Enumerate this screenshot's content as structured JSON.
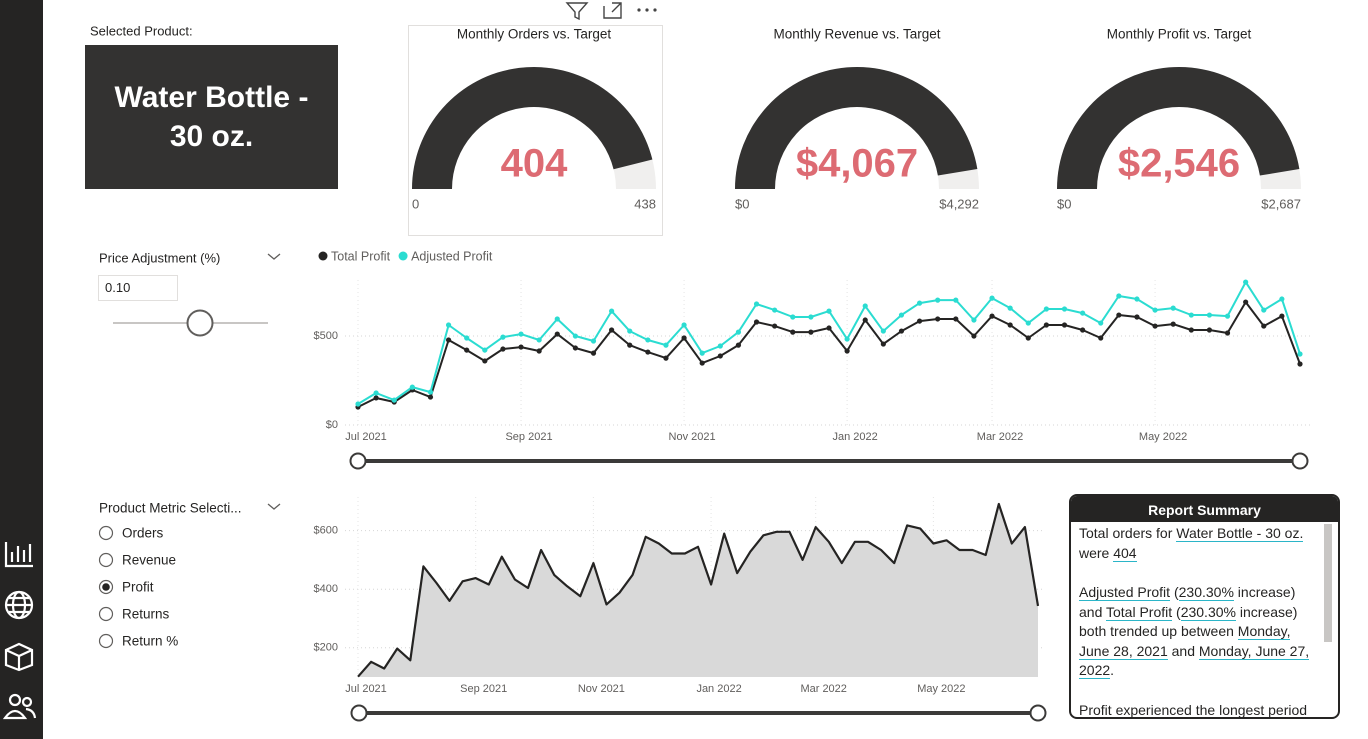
{
  "product_card": {
    "label": "Selected Product:",
    "value": "Water Bottle - 30 oz."
  },
  "gauges": [
    {
      "title": "Monthly Orders vs. Target",
      "value": 404,
      "min": 0,
      "max": 438
    },
    {
      "title": "Monthly Revenue vs. Target",
      "value": 4067,
      "value_label": "$4,067",
      "min": 0,
      "min_label": "$0",
      "max": 4292,
      "max_label": "$4,292"
    },
    {
      "title": "Monthly Profit vs. Target",
      "value": 2546,
      "value_label": "$2,546",
      "min": 0,
      "min_label": "$0",
      "max": 2687,
      "max_label": "$2,687"
    }
  ],
  "price_slicer": {
    "label": "Price Adjustment (%)",
    "input": "0.10"
  },
  "profit_chart": {
    "type": "line",
    "categories": [
      "Jul 2021",
      null,
      null,
      null,
      null,
      null,
      null,
      null,
      null,
      "Sep 2021",
      null,
      null,
      null,
      null,
      null,
      null,
      null,
      null,
      "Nov 2021",
      null,
      null,
      null,
      null,
      null,
      null,
      null,
      null,
      "Jan 2022",
      null,
      null,
      null,
      null,
      null,
      null,
      null,
      "Mar 2022",
      null,
      null,
      null,
      null,
      null,
      null,
      null,
      null,
      "May 2022",
      null,
      null,
      null,
      null,
      null,
      null,
      null,
      null
    ],
    "series": [
      {
        "name": "Total Profit",
        "color": "#252423",
        "values": [
          101,
          152,
          129,
          197,
          157,
          478,
          421,
          360,
          427,
          438,
          416,
          511,
          433,
          404,
          534,
          449,
          410,
          376,
          489,
          348,
          388,
          449,
          579,
          556,
          522,
          522,
          545,
          416,
          590,
          455,
          528,
          584,
          596,
          596,
          500,
          612,
          562,
          489,
          562,
          562,
          534,
          489,
          618,
          607,
          556,
          567,
          534,
          534,
          517,
          691,
          556,
          612,
          343
        ]
      },
      {
        "name": "Adjusted Profit",
        "color": "#2bdcd1",
        "values": [
          118,
          180,
          140,
          213,
          185,
          562,
          489,
          421,
          494,
          511,
          478,
          596,
          500,
          472,
          640,
          528,
          478,
          449,
          562,
          404,
          444,
          522,
          680,
          646,
          607,
          607,
          640,
          483,
          669,
          528,
          618,
          685,
          702,
          702,
          590,
          713,
          657,
          573,
          652,
          652,
          629,
          573,
          725,
          708,
          646,
          657,
          618,
          618,
          612,
          803,
          646,
          708,
          399
        ]
      }
    ],
    "ylim": [
      0,
      815
    ],
    "yticks": [
      {
        "value": 0,
        "label": "$0"
      },
      {
        "value": 500,
        "label": "$500"
      }
    ],
    "grid": true,
    "legend": "top-left"
  },
  "metric_selector": {
    "title": "Product Metric Selecti...",
    "options": [
      "Orders",
      "Revenue",
      "Profit",
      "Returns",
      "Return %"
    ],
    "selected": 2
  },
  "metric_chart": {
    "type": "area",
    "categories": [
      "Jul 2021",
      null,
      null,
      null,
      null,
      null,
      null,
      null,
      null,
      "Sep 2021",
      null,
      null,
      null,
      null,
      null,
      null,
      null,
      null,
      "Nov 2021",
      null,
      null,
      null,
      null,
      null,
      null,
      null,
      null,
      "Jan 2022",
      null,
      null,
      null,
      null,
      null,
      null,
      null,
      "Mar 2022",
      null,
      null,
      null,
      null,
      null,
      null,
      null,
      null,
      "May 2022",
      null,
      null,
      null,
      null,
      null,
      null,
      null,
      null
    ],
    "series": [
      {
        "name": "Profit",
        "color": "#252423",
        "values": [
          101,
          152,
          129,
          197,
          157,
          478,
          421,
          360,
          427,
          438,
          416,
          511,
          433,
          404,
          534,
          449,
          410,
          376,
          489,
          348,
          388,
          449,
          579,
          556,
          522,
          522,
          545,
          416,
          590,
          455,
          528,
          584,
          596,
          596,
          500,
          612,
          562,
          489,
          562,
          562,
          534,
          489,
          618,
          607,
          556,
          567,
          534,
          534,
          517,
          691,
          556,
          612,
          343
        ]
      }
    ],
    "ylim": [
      100,
      715
    ],
    "yticks": [
      {
        "value": 200,
        "label": "$200"
      },
      {
        "value": 400,
        "label": "$400"
      },
      {
        "value": 600,
        "label": "$600"
      }
    ],
    "grid": true
  },
  "summary": {
    "title": "Report Summary",
    "paragraphs": [
      [
        "Total orders for ",
        {
          "link": "Water Bottle - 30 oz."
        },
        " were ",
        {
          "link": "404"
        }
      ],
      [
        {
          "link": "Adjusted Profit"
        },
        " (",
        {
          "link": "230.30%"
        },
        " increase) and ",
        {
          "link": "Total Profit"
        },
        " (",
        {
          "link": "230.30%"
        },
        " increase) both trended up between ",
        {
          "link": "Monday, June 28, 2021"
        },
        " and ",
        {
          "link": "Monday, June 27, 2022"
        },
        "."
      ],
      [
        "Profit experienced the longest period"
      ]
    ]
  }
}
